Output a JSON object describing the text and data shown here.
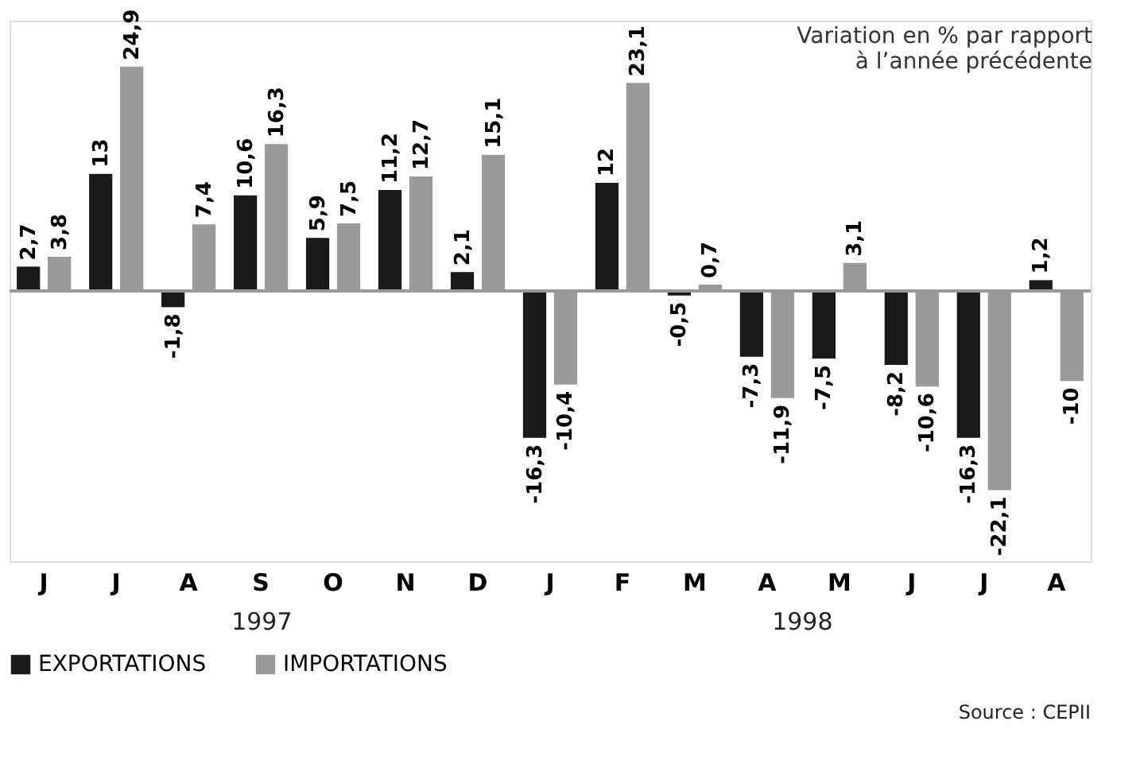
{
  "chart_data": {
    "type": "bar",
    "title": "Variation en % par rapport\nà l’année précédente",
    "categories": [
      "J",
      "J",
      "A",
      "S",
      "O",
      "N",
      "D",
      "J",
      "F",
      "M",
      "A",
      "M",
      "J",
      "J",
      "A"
    ],
    "series": [
      {
        "name": "EXPORTATIONS",
        "color": "#1a1a1a",
        "values": [
          2.7,
          13,
          -1.8,
          10.6,
          5.9,
          11.2,
          2.1,
          -16.3,
          12,
          -0.5,
          -7.3,
          -7.5,
          -8.2,
          -16.3,
          1.2
        ],
        "value_labels": [
          "2,7",
          "13",
          "-1,8",
          "10,6",
          "5,9",
          "11,2",
          "2,1",
          "-16,3",
          "12",
          "-0,5",
          "-7,3",
          "-7,5",
          "-8,2",
          "-16,3",
          "1,2"
        ]
      },
      {
        "name": "IMPORTATIONS",
        "color": "#9a9a9a",
        "values": [
          3.8,
          24.9,
          7.4,
          16.3,
          7.5,
          12.7,
          15.1,
          -10.4,
          23.1,
          0.7,
          -11.9,
          3.1,
          -10.6,
          -22.1,
          -10
        ],
        "value_labels": [
          "3,8",
          "24,9",
          "7,4",
          "16,3",
          "7,5",
          "12,7",
          "15,1",
          "-10,4",
          "23,1",
          "0,7",
          "-11,9",
          "3,1",
          "-10,6",
          "-22,1",
          "-10"
        ]
      }
    ],
    "ylim": [
      -30,
      30
    ],
    "tick_labels": "x",
    "legend": "bottom",
    "ref_lines": [
      {
        "axis": "y",
        "value": 0,
        "color": "#999999"
      }
    ],
    "annotations": [
      "1997",
      "1998",
      "Source : CEPII"
    ]
  }
}
